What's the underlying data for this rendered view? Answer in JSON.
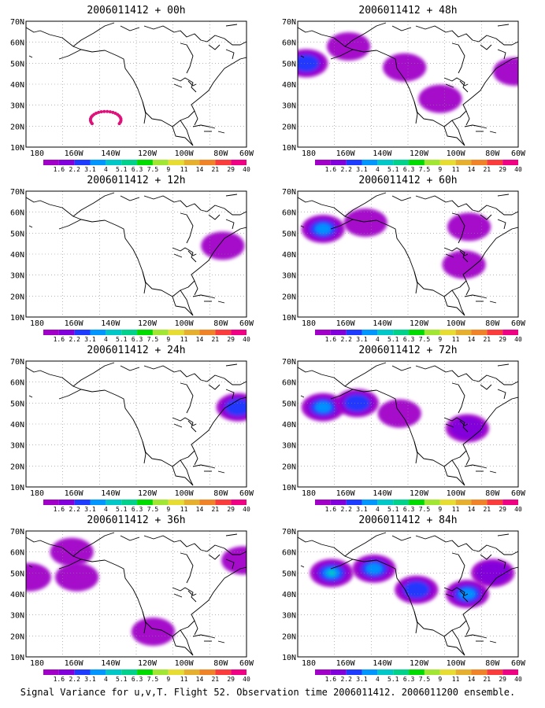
{
  "caption": "Signal Variance for u,v,T. Flight 52. Observation time 2006011412. 2006011200 ensemble.",
  "colorbar": {
    "labels": [
      "1.6",
      "2.2",
      "3.1",
      "4",
      "5.1",
      "6.3",
      "7.5",
      "9",
      "11",
      "14",
      "21",
      "29",
      "40"
    ],
    "colors": [
      "#a000c8",
      "#8200dc",
      "#1e3cff",
      "#0096ff",
      "#00c8c8",
      "#00d28c",
      "#00dc00",
      "#a0e632",
      "#e6dc32",
      "#e6af2d",
      "#f08228",
      "#fa3c3c",
      "#f00082"
    ]
  },
  "chart_data": [
    {
      "type": "heatmap",
      "title": "2006011412 + 00h",
      "panel": "00h",
      "xticks": [
        "180",
        "160W",
        "140W",
        "120W",
        "100W",
        "80W",
        "60W"
      ],
      "yticks": [
        "10N",
        "20N",
        "30N",
        "40N",
        "50N",
        "60N",
        "70N"
      ],
      "xlim": [
        -190,
        -60
      ],
      "ylim": [
        10,
        70
      ],
      "grid": true,
      "features": [
        {
          "kind": "dots",
          "label": "observation track (dropsondes)",
          "lon_range": [
            -152,
            -134
          ],
          "lat_range": [
            19,
            27
          ]
        }
      ]
    },
    {
      "type": "heatmap",
      "title": "2006011412 + 48h",
      "panel": "48h",
      "xticks": [
        "180",
        "160W",
        "140W",
        "120W",
        "100W",
        "80W",
        "60W"
      ],
      "yticks": [
        "10N",
        "20N",
        "30N",
        "40N",
        "50N",
        "60N",
        "70N"
      ],
      "xlim": [
        -190,
        -60
      ],
      "ylim": [
        10,
        70
      ],
      "grid": true,
      "features": [
        {
          "kind": "blob",
          "lon": -185,
          "lat": 50,
          "level": "3.1"
        },
        {
          "kind": "blob",
          "lon": -160,
          "lat": 58,
          "level": "1.6"
        },
        {
          "kind": "blob",
          "lon": -127,
          "lat": 48,
          "level": "1.6"
        },
        {
          "kind": "blob",
          "lon": -106,
          "lat": 33,
          "level": "1.6"
        },
        {
          "kind": "blob",
          "lon": -62,
          "lat": 46,
          "level": "1.6"
        }
      ]
    },
    {
      "type": "heatmap",
      "title": "2006011412 + 12h",
      "panel": "12h",
      "xticks": [
        "180",
        "160W",
        "140W",
        "120W",
        "100W",
        "80W",
        "60W"
      ],
      "yticks": [
        "10N",
        "20N",
        "30N",
        "40N",
        "50N",
        "60N",
        "70N"
      ],
      "xlim": [
        -190,
        -60
      ],
      "ylim": [
        10,
        70
      ],
      "grid": true,
      "features": [
        {
          "kind": "blob",
          "lon": -74,
          "lat": 44,
          "level": "1.6"
        }
      ]
    },
    {
      "type": "heatmap",
      "title": "2006011412 + 60h",
      "panel": "60h",
      "xticks": [
        "180",
        "160W",
        "140W",
        "120W",
        "100W",
        "80W",
        "60W"
      ],
      "yticks": [
        "10N",
        "20N",
        "30N",
        "40N",
        "50N",
        "60N",
        "70N"
      ],
      "xlim": [
        -190,
        -60
      ],
      "ylim": [
        10,
        70
      ],
      "grid": true,
      "features": [
        {
          "kind": "blob",
          "lon": -175,
          "lat": 52,
          "level": "4"
        },
        {
          "kind": "blob",
          "lon": -150,
          "lat": 55,
          "level": "1.6"
        },
        {
          "kind": "blob",
          "lon": -89,
          "lat": 53,
          "level": "1.6"
        },
        {
          "kind": "blob",
          "lon": -92,
          "lat": 35,
          "level": "1.6"
        }
      ]
    },
    {
      "type": "heatmap",
      "title": "2006011412 + 24h",
      "panel": "24h",
      "xticks": [
        "180",
        "160W",
        "140W",
        "120W",
        "100W",
        "80W",
        "60W"
      ],
      "yticks": [
        "10N",
        "20N",
        "30N",
        "40N",
        "50N",
        "60N",
        "70N"
      ],
      "xlim": [
        -190,
        -60
      ],
      "ylim": [
        10,
        70
      ],
      "grid": true,
      "features": [
        {
          "kind": "blob",
          "lon": -65,
          "lat": 48,
          "level": "3.1"
        }
      ]
    },
    {
      "type": "heatmap",
      "title": "2006011412 + 72h",
      "panel": "72h",
      "xticks": [
        "180",
        "160W",
        "140W",
        "120W",
        "100W",
        "80W",
        "60W"
      ],
      "yticks": [
        "10N",
        "20N",
        "30N",
        "40N",
        "50N",
        "60N",
        "70N"
      ],
      "xlim": [
        -190,
        -60
      ],
      "ylim": [
        10,
        70
      ],
      "grid": true,
      "features": [
        {
          "kind": "blob",
          "lon": -175,
          "lat": 48,
          "level": "4"
        },
        {
          "kind": "blob",
          "lon": -155,
          "lat": 50,
          "level": "3.1"
        },
        {
          "kind": "blob",
          "lon": -130,
          "lat": 45,
          "level": "1.6"
        },
        {
          "kind": "blob",
          "lon": -90,
          "lat": 38,
          "level": "2.2"
        }
      ]
    },
    {
      "type": "heatmap",
      "title": "2006011412 + 36h",
      "panel": "36h",
      "xticks": [
        "180",
        "160W",
        "140W",
        "120W",
        "100W",
        "80W",
        "60W"
      ],
      "yticks": [
        "10N",
        "20N",
        "30N",
        "40N",
        "50N",
        "60N",
        "70N"
      ],
      "xlim": [
        -190,
        -60
      ],
      "ylim": [
        10,
        70
      ],
      "grid": true,
      "features": [
        {
          "kind": "blob",
          "lon": -188,
          "lat": 48,
          "level": "1.6"
        },
        {
          "kind": "blob",
          "lon": -163,
          "lat": 60,
          "level": "1.6"
        },
        {
          "kind": "blob",
          "lon": -160,
          "lat": 48,
          "level": "1.6"
        },
        {
          "kind": "blob",
          "lon": -115,
          "lat": 22,
          "level": "1.6"
        },
        {
          "kind": "blob",
          "lon": -62,
          "lat": 56,
          "level": "1.6"
        }
      ]
    },
    {
      "type": "heatmap",
      "title": "2006011412 + 84h",
      "panel": "84h",
      "xticks": [
        "180",
        "160W",
        "140W",
        "120W",
        "100W",
        "80W",
        "60W"
      ],
      "yticks": [
        "10N",
        "20N",
        "30N",
        "40N",
        "50N",
        "60N",
        "70N"
      ],
      "xlim": [
        -190,
        -60
      ],
      "ylim": [
        10,
        70
      ],
      "grid": true,
      "features": [
        {
          "kind": "blob",
          "lon": -170,
          "lat": 50,
          "level": "5.1"
        },
        {
          "kind": "blob",
          "lon": -145,
          "lat": 52,
          "level": "4"
        },
        {
          "kind": "blob",
          "lon": -120,
          "lat": 42,
          "level": "3.1"
        },
        {
          "kind": "blob",
          "lon": -90,
          "lat": 40,
          "level": "4"
        },
        {
          "kind": "blob",
          "lon": -75,
          "lat": 50,
          "level": "2.2"
        }
      ]
    }
  ]
}
